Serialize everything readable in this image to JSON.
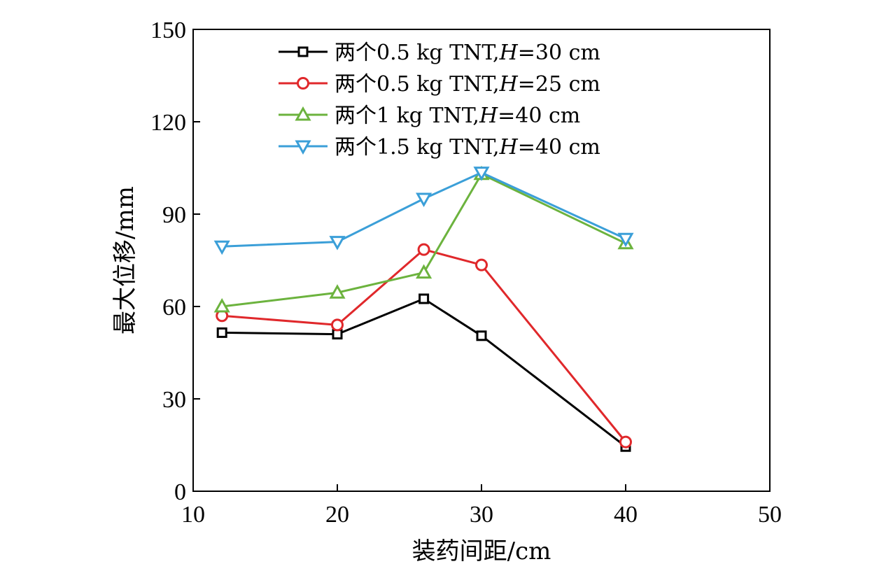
{
  "chart_data": {
    "type": "line",
    "xlabel": "装药间距/cm",
    "ylabel": "最大位移/mm",
    "xlim": [
      10,
      50
    ],
    "ylim": [
      0,
      150
    ],
    "xticks": [
      10,
      20,
      30,
      40,
      50
    ],
    "yticks": [
      0,
      30,
      60,
      90,
      120,
      150
    ],
    "grid": false,
    "legend_position": "top-center",
    "series": [
      {
        "name_parts": [
          "两个0.5 kg TNT,",
          "H",
          "=30 cm"
        ],
        "color": "#000000",
        "marker": "square",
        "x": [
          12,
          20,
          26,
          30,
          40
        ],
        "y": [
          51.5,
          51,
          62.5,
          50.5,
          14.5
        ]
      },
      {
        "name_parts": [
          "两个0.5 kg TNT,",
          "H",
          "=25 cm"
        ],
        "color": "#e0282b",
        "marker": "circle",
        "x": [
          12,
          20,
          26,
          30,
          40
        ],
        "y": [
          57,
          54,
          78.5,
          73.5,
          16
        ]
      },
      {
        "name_parts": [
          "两个1 kg TNT,",
          "H",
          "=40 cm"
        ],
        "color": "#6cb33e",
        "marker": "triangle-up",
        "x": [
          12,
          20,
          26,
          30,
          40
        ],
        "y": [
          60,
          64.5,
          71,
          103,
          80.5
        ]
      },
      {
        "name_parts": [
          "两个1.5 kg TNT,",
          "H",
          "=40 cm"
        ],
        "color": "#3b9fd8",
        "marker": "triangle-down",
        "x": [
          12,
          20,
          26,
          30,
          40
        ],
        "y": [
          79.5,
          81,
          95,
          103.5,
          82
        ]
      }
    ]
  }
}
